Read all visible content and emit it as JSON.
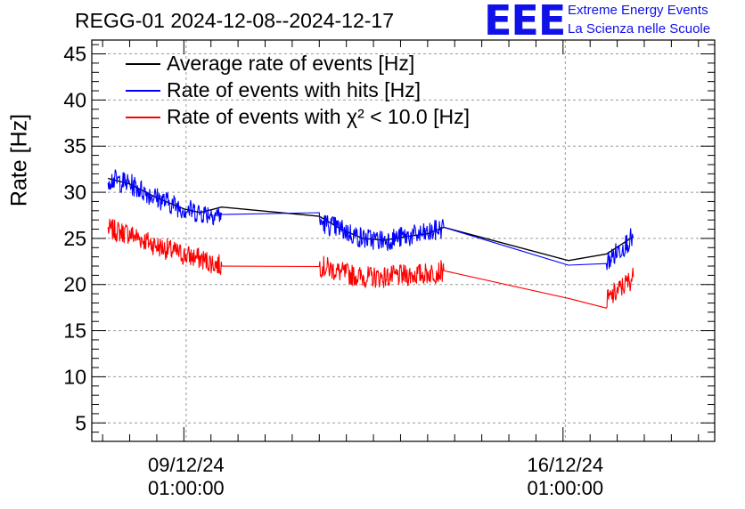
{
  "title": "REGG-01 2024-12-08--2024-12-17",
  "logo": {
    "mark": "EEE",
    "line1": "Extreme Energy Events",
    "line2": "La Scienza nelle Scuole",
    "color": "#1010e8"
  },
  "chart_data": {
    "type": "line",
    "ylabel": "Rate [Hz]",
    "xlabel": "",
    "ylim": [
      3,
      46.5
    ],
    "yticks": [
      5,
      10,
      15,
      20,
      25,
      30,
      35,
      40,
      45
    ],
    "xticks": [
      {
        "date": "09/12/24",
        "time": "01:00:00",
        "x": 9.0417
      },
      {
        "date": "16/12/24",
        "time": "01:00:00",
        "x": 16.0417
      }
    ],
    "xlim": [
      7.3,
      18.8
    ],
    "grid": true,
    "legend_position": "top-left",
    "series": [
      {
        "name": "Average rate of events [Hz]",
        "color": "#000000",
        "x": [
          7.6,
          8.0,
          8.5,
          9.0,
          9.3,
          9.7,
          11.5,
          11.9,
          12.3,
          12.7,
          13.1,
          13.5,
          13.8,
          16.1,
          16.8,
          17.3
        ],
        "values": [
          31.5,
          30.9,
          29.4,
          28.2,
          27.8,
          28.4,
          27.4,
          26.0,
          25.0,
          24.8,
          25.2,
          25.5,
          26.2,
          22.6,
          23.3,
          25.2
        ]
      },
      {
        "name": "Rate of events with hits [Hz]",
        "color": "#0000ff",
        "x": [
          7.6,
          8.0,
          8.5,
          9.0,
          9.3,
          9.7,
          11.5,
          11.9,
          12.3,
          12.7,
          13.1,
          13.5,
          13.8,
          16.1,
          16.8,
          17.3
        ],
        "values": [
          31.5,
          30.9,
          29.4,
          28.2,
          27.8,
          27.6,
          26.8,
          26.0,
          25.0,
          24.8,
          25.2,
          25.5,
          26.2,
          22.1,
          22.4,
          25.2
        ]
      },
      {
        "name": "Rate of events with χ² < 10.0 [Hz]",
        "color": "#ff0000",
        "x": [
          7.6,
          8.0,
          8.5,
          9.0,
          9.3,
          9.7,
          11.5,
          11.9,
          12.3,
          12.7,
          13.1,
          13.5,
          13.8,
          16.1,
          16.8,
          17.3
        ],
        "values": [
          26.0,
          25.5,
          24.2,
          23.2,
          22.8,
          22.0,
          22.1,
          21.3,
          20.8,
          20.8,
          21.0,
          21.2,
          21.5,
          18.5,
          18.2,
          20.8
        ]
      }
    ]
  }
}
